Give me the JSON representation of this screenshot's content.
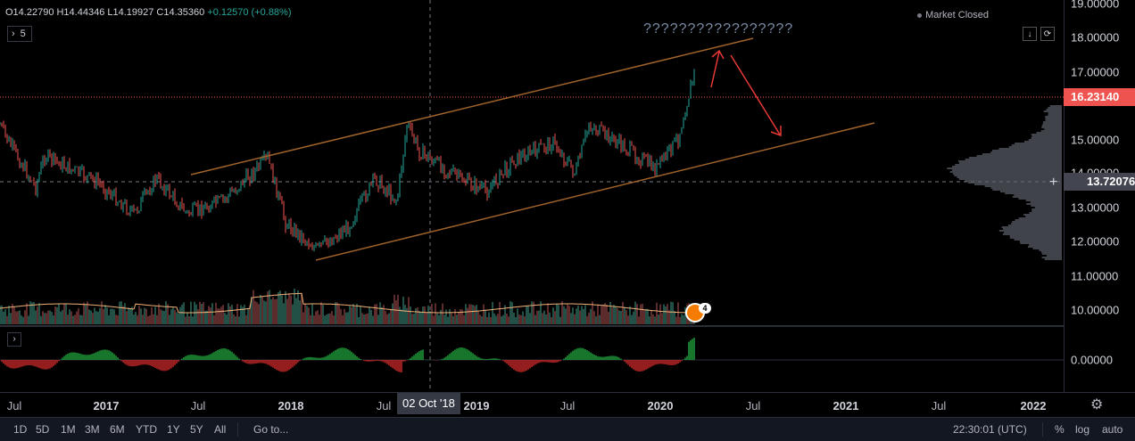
{
  "header": {
    "ohlc_text": "O14.22790  H14.44346  L14.19927  C14.35360",
    "change": "+0.12570 (+0.88%)",
    "interval": "5",
    "interval_icon": "chevron-right-icon",
    "market_status": "Market Closed",
    "annotation_text": "?????????????????"
  },
  "top_buttons": [
    "↓",
    "⟳"
  ],
  "price_axis": {
    "labels": [
      "19.00000",
      "18.00000",
      "17.00000",
      "15.00000",
      "14.00000",
      "13.00000",
      "12.00000",
      "11.00000",
      "10.00000",
      "0.00000"
    ],
    "current_price": "16.23140",
    "crosshair_price": "13.72076"
  },
  "time_axis": {
    "labels": [
      {
        "text": "Jul",
        "bold": false
      },
      {
        "text": "2017",
        "bold": true
      },
      {
        "text": "Jul",
        "bold": false
      },
      {
        "text": "2018",
        "bold": true
      },
      {
        "text": "Jul",
        "bold": false
      },
      {
        "text": "2019",
        "bold": true
      },
      {
        "text": "Jul",
        "bold": false
      },
      {
        "text": "2020",
        "bold": true
      },
      {
        "text": "Jul",
        "bold": false
      },
      {
        "text": "2021",
        "bold": true
      },
      {
        "text": "Jul",
        "bold": false
      },
      {
        "text": "2022",
        "bold": true
      }
    ],
    "crosshair_date": "02 Oct '18"
  },
  "bottom_bar": {
    "ranges": [
      "1D",
      "5D",
      "1M",
      "3M",
      "6M",
      "YTD",
      "1Y",
      "5Y",
      "All"
    ],
    "goto": "Go to...",
    "clock": "22:30:01 (UTC)",
    "options": [
      "%",
      "log",
      "auto"
    ]
  },
  "events_badge": "4",
  "colors": {
    "up": "#26a69a",
    "down": "#ef5350",
    "channel": "#a0632a",
    "arrow": "#e53935",
    "volume_ma": "#f0b27a"
  }
}
